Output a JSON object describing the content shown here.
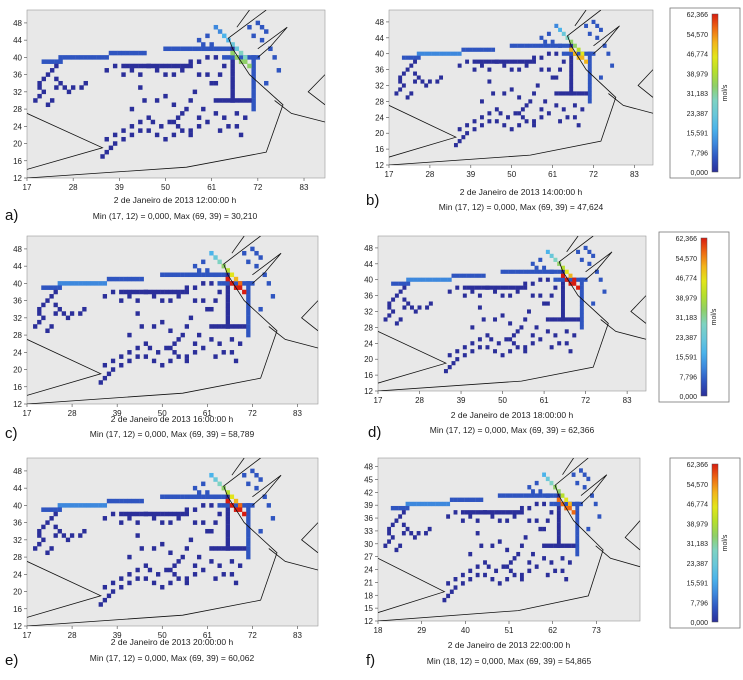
{
  "figure": {
    "colorbar_unit": "mol/s"
  },
  "colors": {
    "background": "#e8e8e8",
    "outline": "#111111",
    "scale": [
      "#2b2f9a",
      "#2f55c0",
      "#3d88dd",
      "#4bb3ea",
      "#69c7d9",
      "#7fd3c2",
      "#8fd067",
      "#b5df2c",
      "#e2e51a",
      "#f2b51a",
      "#ee6a12",
      "#d81c10"
    ]
  },
  "colorbar": {
    "unit": "mol/s",
    "ticks": [
      "62,366",
      "54,570",
      "46,774",
      "38,979",
      "31,183",
      "23,387",
      "15,591",
      "7,796",
      "0,000"
    ]
  },
  "chart_data": [
    {
      "type": "heatmap",
      "panel": "a)",
      "timestamp": "2 de Janeiro de 2013 12:00:00 h",
      "stats": "Min (17, 12) = 0,000, Max (69, 39) = 30,210",
      "xticks": [
        "17",
        "28",
        "39",
        "50",
        "61",
        "72",
        "83"
      ],
      "yticks": [
        "48",
        "44",
        "40",
        "36",
        "32",
        "28",
        "24",
        "20",
        "16",
        "12"
      ],
      "xlim": [
        17,
        88
      ],
      "ylim": [
        12,
        51
      ],
      "max_value": 30.21,
      "colorbar": false
    },
    {
      "type": "heatmap",
      "panel": "b)",
      "timestamp": "2 de Janeiro de 2013 14:00:00 h",
      "stats": "Min (17, 12) = 0,000, Max (69, 39) = 47,624",
      "xticks": [
        "17",
        "28",
        "39",
        "50",
        "61",
        "72",
        "83"
      ],
      "yticks": [
        "48",
        "44",
        "40",
        "36",
        "32",
        "28",
        "24",
        "20",
        "16",
        "12"
      ],
      "xlim": [
        17,
        88
      ],
      "ylim": [
        12,
        51
      ],
      "max_value": 47.624,
      "colorbar": true
    },
    {
      "type": "heatmap",
      "panel": "c)",
      "timestamp": "2 de Janeiro de 2013 16:00:00 h",
      "stats": "Min (17, 12) = 0,000, Max (69, 39) = 58,789",
      "xticks": [
        "17",
        "28",
        "39",
        "50",
        "61",
        "72",
        "83"
      ],
      "yticks": [
        "48",
        "44",
        "40",
        "36",
        "32",
        "28",
        "24",
        "20",
        "16",
        "12"
      ],
      "xlim": [
        17,
        88
      ],
      "ylim": [
        12,
        51
      ],
      "max_value": 58.789,
      "colorbar": false
    },
    {
      "type": "heatmap",
      "panel": "d)",
      "timestamp": "2 de Janeiro de 2013 18:00:00 h",
      "stats": "Min (17, 12) = 0,000, Max (69, 39) = 62,366",
      "xticks": [
        "17",
        "28",
        "39",
        "50",
        "61",
        "72",
        "83"
      ],
      "yticks": [
        "48",
        "44",
        "40",
        "36",
        "32",
        "28",
        "24",
        "20",
        "16",
        "12"
      ],
      "xlim": [
        17,
        88
      ],
      "ylim": [
        12,
        51
      ],
      "max_value": 62.366,
      "colorbar": true
    },
    {
      "type": "heatmap",
      "panel": "e)",
      "timestamp": "2 de Janeiro de 2013 20:00:00 h",
      "stats": "Min (17, 12) = 0,000, Max (69, 39) = 60,062",
      "xticks": [
        "17",
        "28",
        "39",
        "50",
        "61",
        "72",
        "83"
      ],
      "yticks": [
        "48",
        "44",
        "40",
        "36",
        "32",
        "28",
        "24",
        "20",
        "16",
        "12"
      ],
      "xlim": [
        17,
        88
      ],
      "ylim": [
        12,
        51
      ],
      "max_value": 60.062,
      "colorbar": false
    },
    {
      "type": "heatmap",
      "panel": "f)",
      "timestamp": "2 de Janeiro de 2013 22:00:00 h",
      "stats": "Min (18, 12) = 0,000, Max (69, 39) = 54,865",
      "xticks": [
        "18",
        "29",
        "40",
        "51",
        "62",
        "73"
      ],
      "yticks": [
        "48",
        "45",
        "42",
        "39",
        "36",
        "33",
        "30",
        "27",
        "24",
        "21",
        "18",
        "15",
        "12"
      ],
      "xlim": [
        18,
        84
      ],
      "ylim": [
        12,
        50
      ],
      "max_value": 54.865,
      "colorbar": true
    }
  ]
}
